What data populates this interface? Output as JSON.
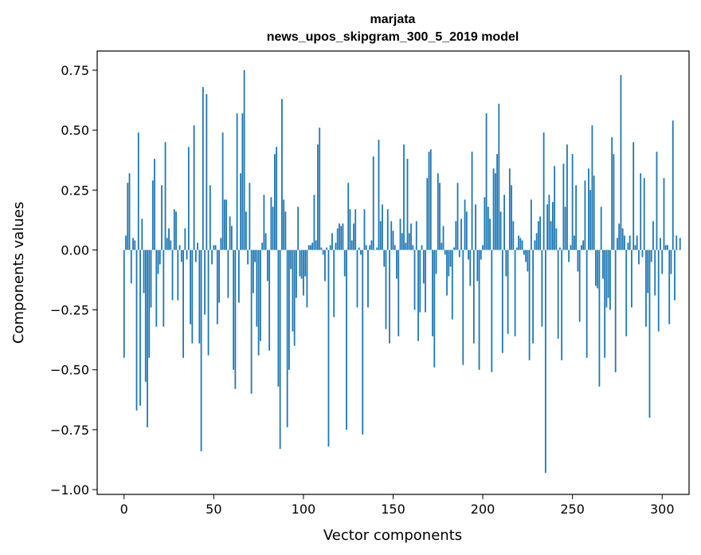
{
  "chart_data": {
    "type": "bar",
    "title": "marjata",
    "subtitle": "news_upos_skipgram_300_5_2019 model",
    "xlabel": "Vector components",
    "ylabel": "Components values",
    "xlim": [
      -15,
      315
    ],
    "ylim": [
      -1.02,
      0.83
    ],
    "xticks": [
      0,
      50,
      100,
      150,
      200,
      250,
      300
    ],
    "xtick_labels": [
      "0",
      "50",
      "100",
      "150",
      "200",
      "250",
      "300"
    ],
    "yticks": [
      0.75,
      0.5,
      0.25,
      0.0,
      -0.25,
      -0.5,
      -0.75,
      -1.0
    ],
    "ytick_labels": [
      "0.75",
      "0.50",
      "0.25",
      "0.00",
      "−0.25",
      "−0.50",
      "−0.75",
      "−1.00"
    ],
    "bar_color": "#1f77b4",
    "grid": false,
    "values": [
      -0.45,
      0.06,
      0.28,
      0.32,
      -0.14,
      0.05,
      0.04,
      -0.67,
      0.49,
      -0.65,
      0.13,
      -0.18,
      -0.55,
      -0.74,
      -0.45,
      -0.24,
      0.29,
      0.38,
      -0.32,
      -0.1,
      -0.06,
      0.27,
      -0.32,
      0.45,
      0.05,
      0.09,
      0.04,
      -0.21,
      0.17,
      0.16,
      -0.21,
      0.02,
      -0.05,
      -0.45,
      0.09,
      -0.04,
      0.43,
      -0.31,
      -0.39,
      0.52,
      -0.05,
      0.03,
      -0.39,
      -0.84,
      0.68,
      -0.27,
      0.65,
      -0.44,
      0.27,
      -0.06,
      0.02,
      0.02,
      -0.31,
      -0.22,
      0.05,
      0.49,
      0.21,
      0.21,
      -0.2,
      0.14,
      0.1,
      -0.5,
      -0.58,
      0.57,
      -0.22,
      0.32,
      0.57,
      0.75,
      0.16,
      -0.06,
      0.28,
      -0.6,
      -0.18,
      -0.05,
      -0.32,
      -0.44,
      -0.38,
      0.03,
      0.23,
      0.07,
      -0.13,
      -0.42,
      0.22,
      0.18,
      0.4,
      0.43,
      -0.57,
      -0.83,
      0.63,
      0.21,
      0.16,
      -0.74,
      -0.5,
      -0.08,
      -0.34,
      -0.4,
      -0.2,
      0.18,
      -0.11,
      -0.12,
      -0.19,
      -0.11,
      -0.24,
      0.02,
      0.02,
      0.03,
      0.23,
      0.04,
      0.44,
      0.51,
      0.01,
      -0.02,
      -0.13,
      0.01,
      -0.82,
      0.02,
      0.07,
      -0.28,
      0.03,
      0.09,
      0.11,
      0.1,
      0.11,
      -0.11,
      -0.75,
      0.28,
      0.17,
      0.04,
      0.11,
      0.17,
      -0.24,
      0.01,
      -0.02,
      -0.77,
      0.17,
      0.02,
      -0.24,
      0.02,
      0.04,
      0.39,
      0.0,
      0.01,
      0.46,
      0.12,
      0.19,
      -0.07,
      -0.33,
      0.17,
      -0.39,
      0.12,
      0.08,
      0.02,
      -0.12,
      -0.36,
      0.13,
      0.07,
      0.44,
      0.03,
      0.38,
      0.07,
      0.11,
      0.02,
      -0.25,
      0.12,
      -0.38,
      -0.26,
      0.02,
      -0.14,
      -0.26,
      0.3,
      0.41,
      0.42,
      -0.36,
      -0.49,
      -0.1,
      0.32,
      0.28,
      0.03,
      0.1,
      -0.02,
      -0.19,
      -0.11,
      -0.07,
      -0.29,
      0.01,
      0.12,
      0.28,
      -0.03,
      0.13,
      -0.48,
      0.21,
      0.16,
      -0.04,
      -0.15,
      0.41,
      -0.39,
      0.19,
      -0.13,
      -0.5,
      -0.04,
      0.02,
      0.22,
      0.57,
      0.18,
      0.13,
      -0.51,
      0.34,
      0.32,
      0.4,
      0.61,
      0.16,
      -0.43,
      0.23,
      -0.11,
      -0.35,
      0.34,
      0.27,
      0.12,
      -0.36,
      0.01,
      0.06,
      0.05,
      0.04,
      -0.02,
      -0.05,
      -0.09,
      -0.46,
      0.21,
      -0.39,
      0.04,
      0.07,
      0.12,
      0.14,
      -0.32,
      0.49,
      -0.93,
      0.19,
      0.23,
      0.12,
      0.2,
      0.35,
      0.09,
      -0.37,
      0.01,
      -0.46,
      0.36,
      0.18,
      0.44,
      -0.05,
      0.02,
      0.4,
      0.06,
      0.27,
      -0.09,
      -0.3,
      0.02,
      0.04,
      0.29,
      -0.45,
      0.34,
      0.25,
      0.52,
      0.31,
      -0.15,
      -0.16,
      -0.57,
      0.18,
      -0.12,
      -0.45,
      -0.24,
      -0.2,
      -0.25,
      0.47,
      0.4,
      -0.51,
      0.05,
      0.11,
      0.73,
      0.09,
      0.06,
      -0.36,
      0.03,
      0.06,
      -0.24,
      0.45,
      0.02,
      0.06,
      -0.06,
      0.32,
      -0.03,
      0.3,
      -0.32,
      -0.18,
      -0.7,
      -0.05,
      0.12,
      -0.19,
      0.41,
      -0.34,
      0.05,
      -0.1,
      0.3,
      0.02,
      0.02,
      -0.31,
      -0.1,
      0.54,
      -0.21,
      0.06,
      0.0,
      0.05
    ]
  }
}
